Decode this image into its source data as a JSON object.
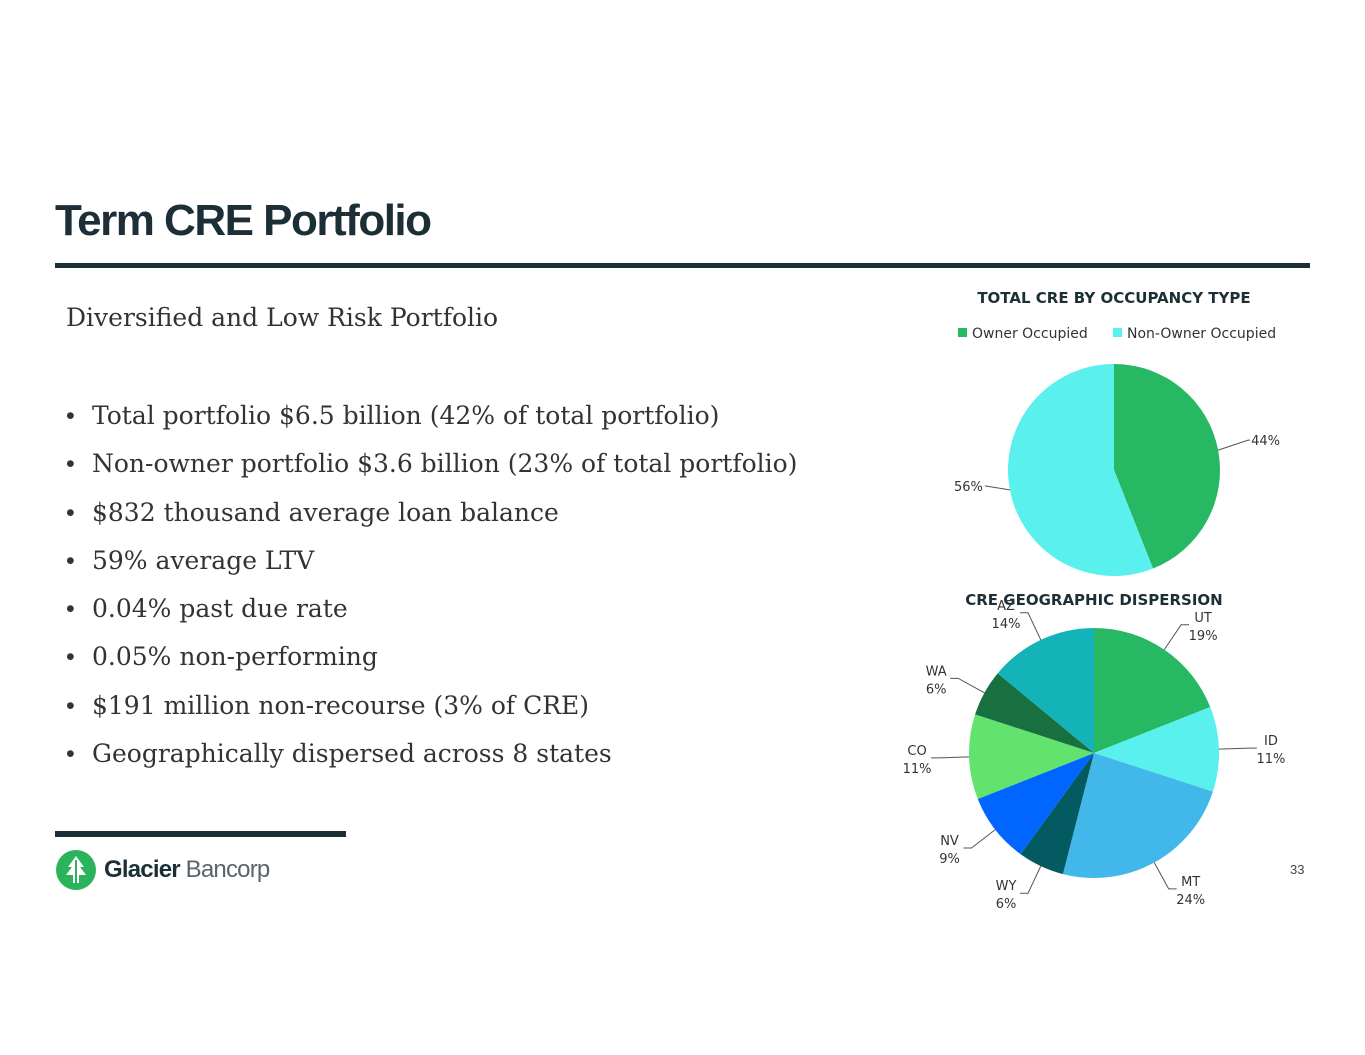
{
  "slide": {
    "title": "Term CRE Portfolio",
    "subtitle": "Diversified and Low Risk Portfolio",
    "bullet_marker": "•",
    "bullets": [
      "Total portfolio $6.5 billion (42% of total portfolio)",
      "Non-owner portfolio $3.6 billion (23% of total portfolio)",
      "$832 thousand average loan balance",
      "59% average LTV",
      "0.04% past due rate",
      "0.05% non-performing",
      "$191 million non-recourse (3% of CRE)",
      "Geographically dispersed across 8 states"
    ],
    "logo_text_bold": "Glacier",
    "logo_text_light": "Bancorp",
    "page_number": "33"
  },
  "colors": {
    "heading": "#1c2f36",
    "logo_green": "#2bb35c"
  },
  "chart_data": [
    {
      "type": "pie",
      "title": "TOTAL CRE BY OCCUPANCY TYPE",
      "legend": "top",
      "categories": [
        "Owner Occupied",
        "Non-Owner Occupied"
      ],
      "values": [
        44,
        56
      ],
      "labels": [
        "44%",
        "56%"
      ],
      "colors": [
        "#26b862",
        "#5af0ee"
      ]
    },
    {
      "type": "pie",
      "title": "CRE GEOGRAPHIC DISPERSION",
      "legend": "none",
      "categories": [
        "UT",
        "ID",
        "MT",
        "WY",
        "NV",
        "CO",
        "WA",
        "AZ"
      ],
      "values": [
        19,
        11,
        24,
        6,
        9,
        11,
        6,
        14
      ],
      "labels": [
        "19%",
        "11%",
        "24%",
        "6%",
        "9%",
        "11%",
        "6%",
        "14%"
      ],
      "colors": [
        "#26b862",
        "#5af0ee",
        "#41b7ea",
        "#035a60",
        "#0066ff",
        "#62e36e",
        "#187040",
        "#13b3b8"
      ]
    }
  ]
}
